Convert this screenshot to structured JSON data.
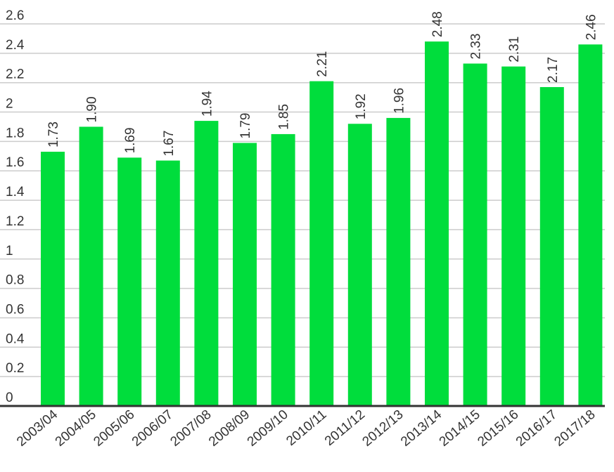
{
  "chart_data": {
    "type": "bar",
    "categories": [
      "2003/04",
      "2004/05",
      "2005/06",
      "2006/07",
      "2007/08",
      "2008/09",
      "2009/10",
      "2010/11",
      "2011/12",
      "2012/13",
      "2013/14",
      "2014/15",
      "2015/16",
      "2016/17",
      "2017/18"
    ],
    "values": [
      1.73,
      1.9,
      1.69,
      1.67,
      1.94,
      1.79,
      1.85,
      2.21,
      1.92,
      1.96,
      2.48,
      2.33,
      2.31,
      2.17,
      2.46
    ],
    "value_labels": [
      "1.73",
      "1.90",
      "1.69",
      "1.67",
      "1.94",
      "1.79",
      "1.85",
      "2.21",
      "1.92",
      "1.96",
      "2.48",
      "2.33",
      "2.31",
      "2.17",
      "2.46"
    ],
    "y_ticks": [
      "0",
      "0.2",
      "0.4",
      "0.6",
      "0.8",
      "1",
      "1.2",
      "1.4",
      "1.6",
      "1.8",
      "2",
      "2.2",
      "2.4",
      "2.6"
    ],
    "ylim": [
      0,
      2.6
    ],
    "title": "",
    "xlabel": "",
    "ylabel": "",
    "grid": true,
    "colors": {
      "bar": "#00dd3c",
      "grid": "#cccccc",
      "axis": "#333333"
    }
  }
}
